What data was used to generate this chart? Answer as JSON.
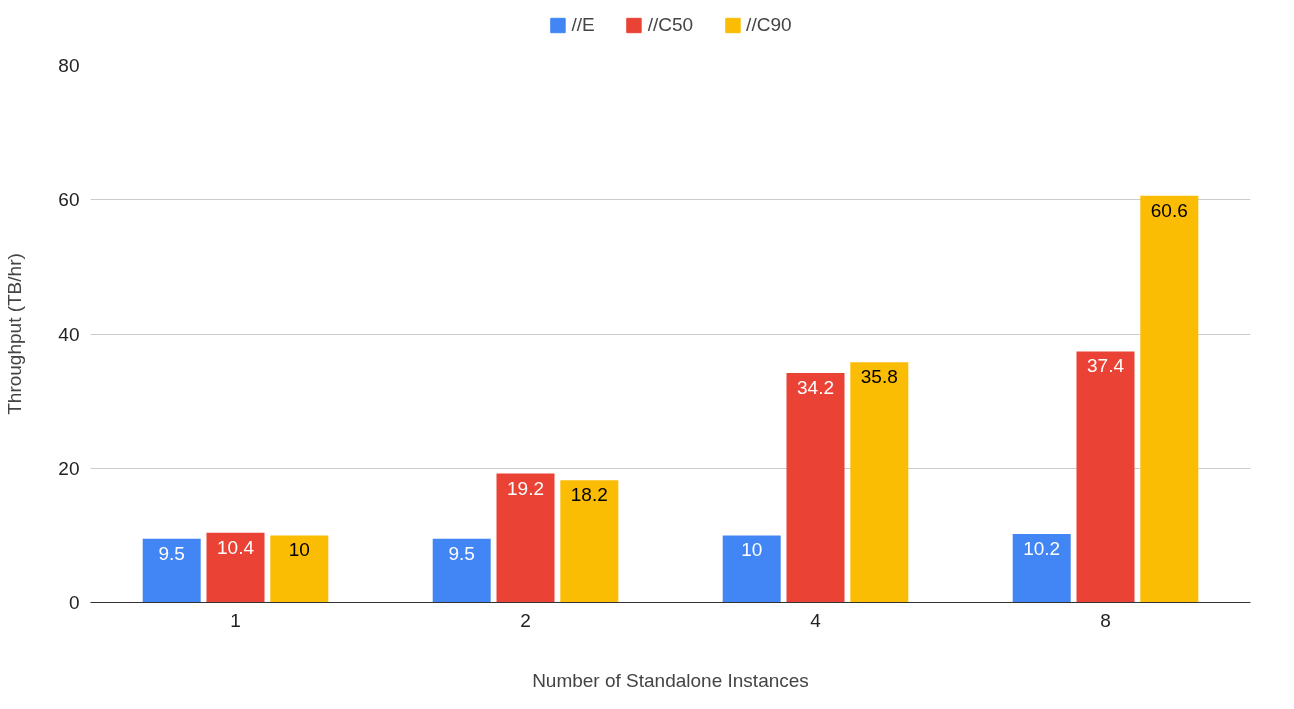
{
  "chart_data": {
    "type": "bar",
    "xlabel": "Number of Standalone Instances",
    "ylabel": "Throughput (TB/hr)",
    "categories": [
      "1",
      "2",
      "4",
      "8"
    ],
    "series": [
      {
        "name": "//E",
        "color": "#4285f4",
        "values": [
          9.5,
          9.5,
          10,
          10.2
        ]
      },
      {
        "name": "//C50",
        "color": "#ea4335",
        "values": [
          10.4,
          19.2,
          34.2,
          37.4
        ]
      },
      {
        "name": "//C90",
        "color": "#fbbc04",
        "values": [
          10,
          18.2,
          35.8,
          60.6
        ]
      }
    ],
    "ylim": [
      0,
      80
    ],
    "yticks": [
      0,
      20,
      40,
      60,
      80
    ],
    "grid": "y",
    "legend": "top",
    "data_labels": true
  }
}
